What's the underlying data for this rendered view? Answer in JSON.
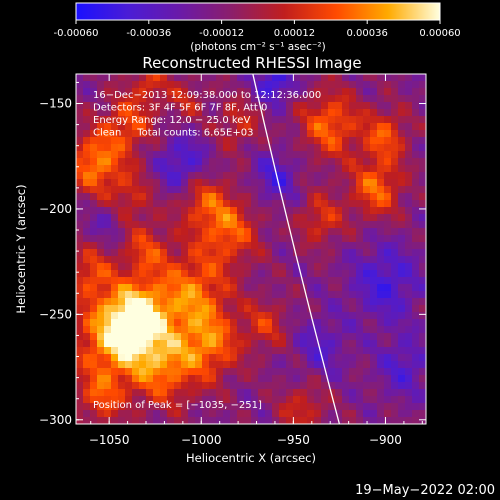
{
  "chart_data": {
    "type": "heatmap",
    "title": "Reconstructed RHESSI Image",
    "colorbar": {
      "ticks": [
        "-0.00060",
        "-0.00036",
        "-0.00012",
        "0.00012",
        "0.00036",
        "0.00060"
      ],
      "unit_label": "(photons cm⁻² s⁻¹ asec⁻²)",
      "range": [
        -0.0006,
        0.0006
      ],
      "colormap": [
        "#1a10ff",
        "#4a1cd6",
        "#6a1aa8",
        "#8c1e6a",
        "#c01e1e",
        "#ff4a00",
        "#ffaa00",
        "#ffffe0"
      ]
    },
    "xlabel": "Heliocentric X (arcsec)",
    "ylabel": "Heliocentric Y (arcsec)",
    "xlim": [
      -1068,
      -878
    ],
    "ylim": [
      -302,
      -136
    ],
    "xticks": [
      {
        "value": -1050,
        "label": "−1050"
      },
      {
        "value": -1000,
        "label": "−1000"
      },
      {
        "value": -950,
        "label": "−950"
      },
      {
        "value": -900,
        "label": "−900"
      }
    ],
    "yticks": [
      {
        "value": -150,
        "label": "−150"
      },
      {
        "value": -200,
        "label": "−200"
      },
      {
        "value": -250,
        "label": "−250"
      },
      {
        "value": -300,
        "label": "−300"
      }
    ],
    "annotations": [
      "16−Dec−2013 12:09:38.000 to 12:12:36.000",
      "Detectors: 3F 4F 5F 6F 7F 8F, Att 0",
      "Energy Range: 12.0 − 25.0 keV",
      "Clean     Total counts: 6.65E+03"
    ],
    "peak_label": "Position of Peak = [−1035, −251]",
    "peak": {
      "x": -1035,
      "y": -251
    },
    "limb": [
      {
        "x": -972,
        "y": -136
      },
      {
        "x": -950,
        "y": -220
      },
      {
        "x": -925,
        "y": -302
      }
    ],
    "blobs": [
      {
        "x": -1035,
        "y": -251,
        "r": 16,
        "v": 1.0
      },
      {
        "x": -1048,
        "y": -262,
        "r": 22,
        "v": 0.85
      },
      {
        "x": -1005,
        "y": -240,
        "r": 20,
        "v": 0.75
      },
      {
        "x": -1020,
        "y": -275,
        "r": 18,
        "v": 0.7
      },
      {
        "x": -995,
        "y": -265,
        "r": 16,
        "v": 0.65
      },
      {
        "x": -1058,
        "y": -178,
        "r": 14,
        "v": 0.8
      },
      {
        "x": -1040,
        "y": -160,
        "r": 14,
        "v": 0.6
      },
      {
        "x": -985,
        "y": -210,
        "r": 16,
        "v": 0.65
      },
      {
        "x": -1000,
        "y": -195,
        "r": 14,
        "v": 0.55
      },
      {
        "x": -930,
        "y": -160,
        "r": 16,
        "v": 0.7
      },
      {
        "x": -905,
        "y": -190,
        "r": 14,
        "v": 0.7
      },
      {
        "x": -900,
        "y": -165,
        "r": 12,
        "v": 0.6
      },
      {
        "x": -935,
        "y": -205,
        "r": 12,
        "v": 0.5
      },
      {
        "x": -945,
        "y": -295,
        "r": 12,
        "v": 0.45
      },
      {
        "x": -1060,
        "y": -230,
        "r": 12,
        "v": 0.55
      },
      {
        "x": -1030,
        "y": -220,
        "r": 12,
        "v": 0.5
      },
      {
        "x": -1055,
        "y": -290,
        "r": 12,
        "v": 0.5
      },
      {
        "x": -965,
        "y": -255,
        "r": 12,
        "v": 0.45
      },
      {
        "x": -1040,
        "y": -195,
        "r": 14,
        "v": 0.45
      },
      {
        "x": -980,
        "y": -160,
        "r": 12,
        "v": 0.4
      },
      {
        "x": -1008,
        "y": -148,
        "r": 10,
        "v": 0.35
      },
      {
        "x": -1028,
        "y": -140,
        "r": 10,
        "v": 0.45
      },
      {
        "x": -1010,
        "y": -180,
        "r": 14,
        "v": -0.55
      },
      {
        "x": -960,
        "y": -185,
        "r": 12,
        "v": -0.45
      },
      {
        "x": -900,
        "y": -235,
        "r": 18,
        "v": -0.5
      },
      {
        "x": -890,
        "y": -275,
        "r": 14,
        "v": -0.4
      },
      {
        "x": -960,
        "y": -140,
        "r": 10,
        "v": -0.6
      },
      {
        "x": -1050,
        "y": -205,
        "r": 10,
        "v": -0.35
      },
      {
        "x": -935,
        "y": -265,
        "r": 14,
        "v": -0.35
      }
    ]
  },
  "footer": {
    "date": "19−May−2022 02:00"
  }
}
